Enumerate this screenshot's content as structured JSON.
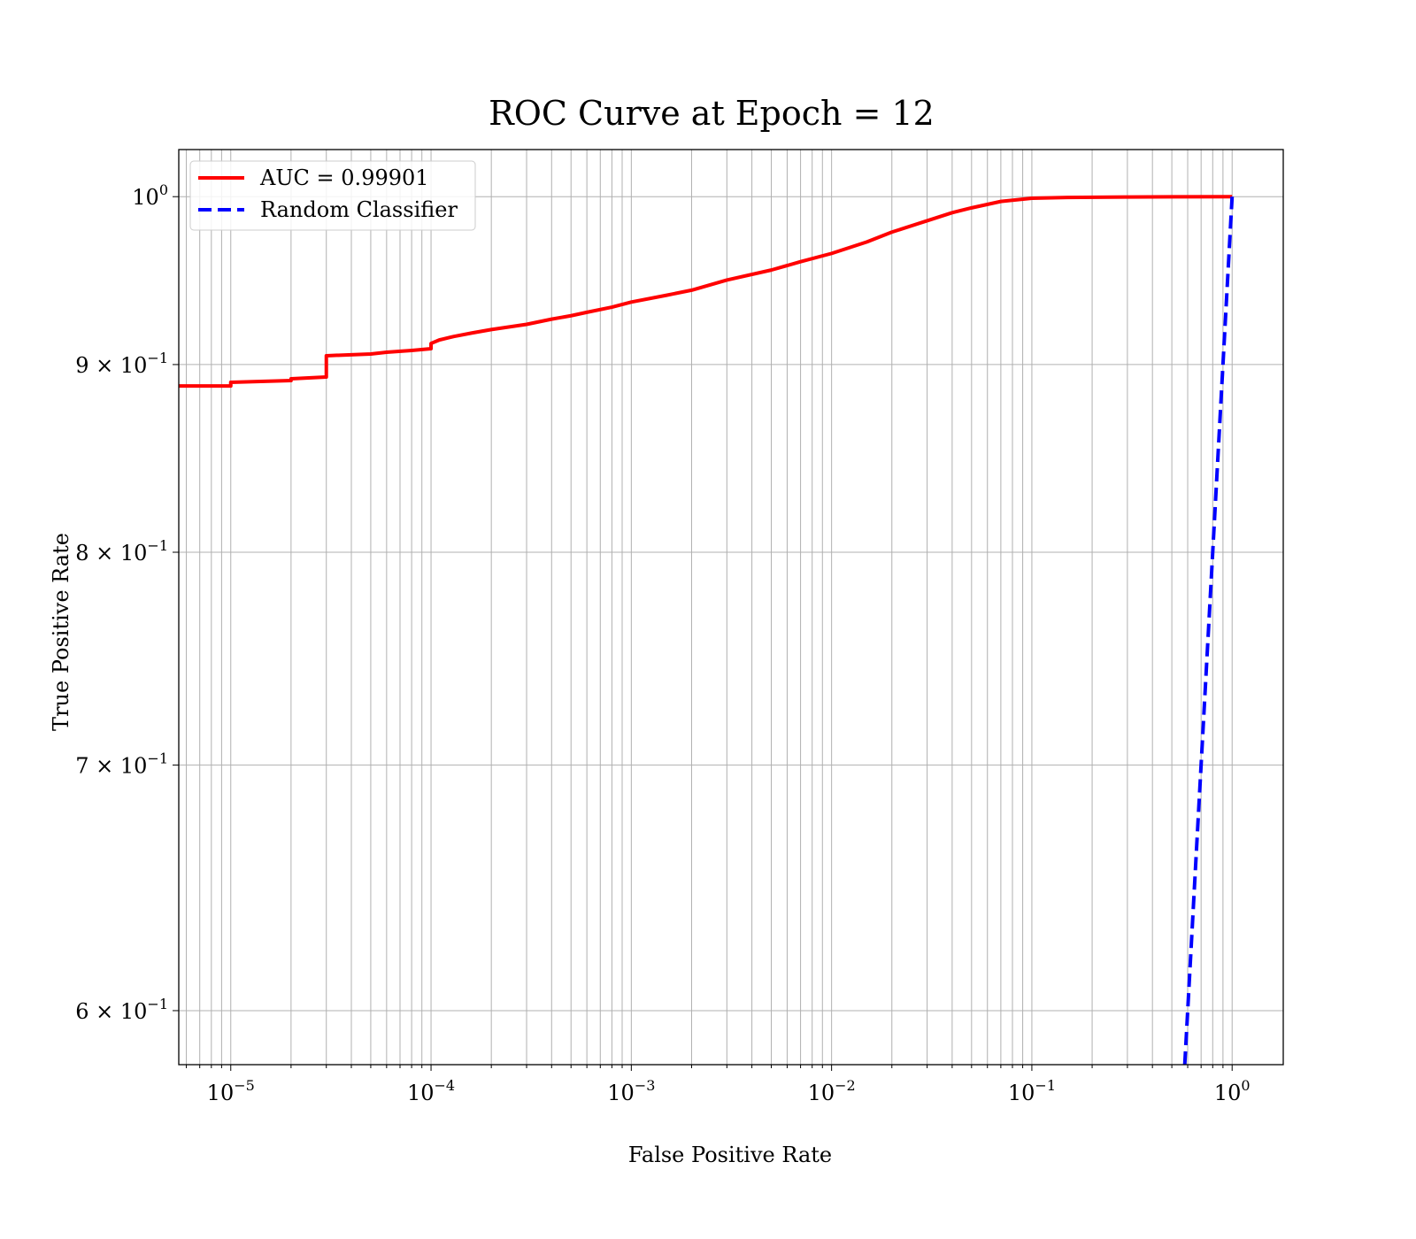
{
  "chart_data": {
    "type": "line",
    "title": "ROC Curve at Epoch = 12",
    "xlabel": "False Positive Rate",
    "ylabel": "True Positive Rate",
    "xscale": "log",
    "yscale": "log",
    "xlim": [
      5.5e-06,
      1.8
    ],
    "ylim": [
      0.58,
      1.03
    ],
    "grid": "on (major and minor)",
    "legend_position": "top-left",
    "x_ticks": [
      {
        "value": 1e-05,
        "base": "10",
        "exp": "−5"
      },
      {
        "value": 0.0001,
        "base": "10",
        "exp": "−4"
      },
      {
        "value": 0.001,
        "base": "10",
        "exp": "−3"
      },
      {
        "value": 0.01,
        "base": "10",
        "exp": "−2"
      },
      {
        "value": 0.1,
        "base": "10",
        "exp": "−1"
      },
      {
        "value": 1,
        "base": "10",
        "exp": "0"
      }
    ],
    "y_ticks": [
      {
        "value": 1.0,
        "base": "10",
        "exp": "0"
      },
      {
        "value": 0.9,
        "base": "9 × 10",
        "exp": "−1"
      },
      {
        "value": 0.8,
        "base": "8 × 10",
        "exp": "−1"
      },
      {
        "value": 0.7,
        "base": "7 × 10",
        "exp": "−1"
      },
      {
        "value": 0.6,
        "base": "6 × 10",
        "exp": "−1"
      }
    ],
    "series": [
      {
        "name": "AUC = 0.99901",
        "color": "#ff0000",
        "style": "solid",
        "x": [
          5.5e-06,
          1e-05,
          1e-05,
          2e-05,
          2e-05,
          3e-05,
          3e-05,
          5e-05,
          6e-05,
          8e-05,
          0.0001,
          0.0001,
          0.00011,
          0.00013,
          0.00016,
          0.0002,
          0.0003,
          0.0004,
          0.0005,
          0.0006,
          0.0008,
          0.001,
          0.0015,
          0.002,
          0.003,
          0.005,
          0.007,
          0.01,
          0.015,
          0.02,
          0.03,
          0.04,
          0.05,
          0.07,
          0.1,
          0.15,
          0.3,
          0.5,
          1.0
        ],
        "y": [
          0.888,
          0.888,
          0.89,
          0.891,
          0.892,
          0.893,
          0.905,
          0.906,
          0.907,
          0.908,
          0.909,
          0.912,
          0.914,
          0.916,
          0.918,
          0.92,
          0.923,
          0.926,
          0.928,
          0.93,
          0.933,
          0.936,
          0.94,
          0.943,
          0.949,
          0.955,
          0.96,
          0.965,
          0.972,
          0.978,
          0.985,
          0.99,
          0.993,
          0.997,
          0.999,
          0.9995,
          0.9998,
          0.9999,
          1.0
        ]
      },
      {
        "name": "Random Classifier",
        "color": "#0000ff",
        "style": "dashed",
        "x": [
          0.58,
          1.0
        ],
        "y": [
          0.58,
          1.0
        ]
      }
    ]
  }
}
